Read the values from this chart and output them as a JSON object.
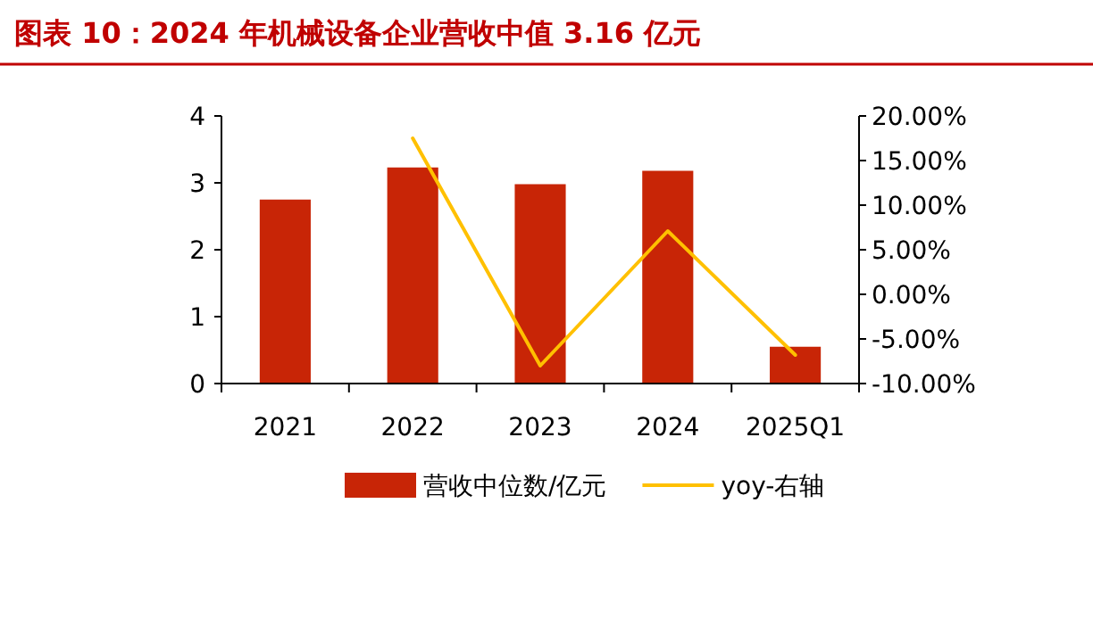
{
  "chart_data": {
    "type": "bar",
    "title": "图表 10：2024 年机械设备企业营收中值 3.16 亿元",
    "categories": [
      "2021",
      "2022",
      "2023",
      "2024",
      "2025Q1"
    ],
    "series": [
      {
        "name": "营收中位数/亿元",
        "color": "#c82506",
        "values": [
          2.75,
          3.23,
          2.98,
          3.18,
          0.55
        ]
      },
      {
        "name": "yoy-右轴",
        "type": "line",
        "axis": "y2",
        "color": "#ffc000",
        "values": [
          null,
          17.5,
          -8,
          7.1,
          -6.8
        ]
      }
    ],
    "ylim": [
      0,
      4
    ],
    "yticks": [
      0,
      1,
      2,
      3,
      4
    ],
    "y2lim": [
      -10,
      20
    ],
    "y2ticks": [
      {
        "value": -10,
        "label": "-10.00%"
      },
      {
        "value": -5,
        "label": "-5.00%"
      },
      {
        "value": 0,
        "label": "0.00%"
      },
      {
        "value": 5,
        "label": "5.00%"
      },
      {
        "value": 10,
        "label": "10.00%"
      },
      {
        "value": 15,
        "label": "15.00%"
      },
      {
        "value": 20,
        "label": "20.00%"
      }
    ],
    "legend": "bottom",
    "grid": false,
    "marker": "none"
  }
}
